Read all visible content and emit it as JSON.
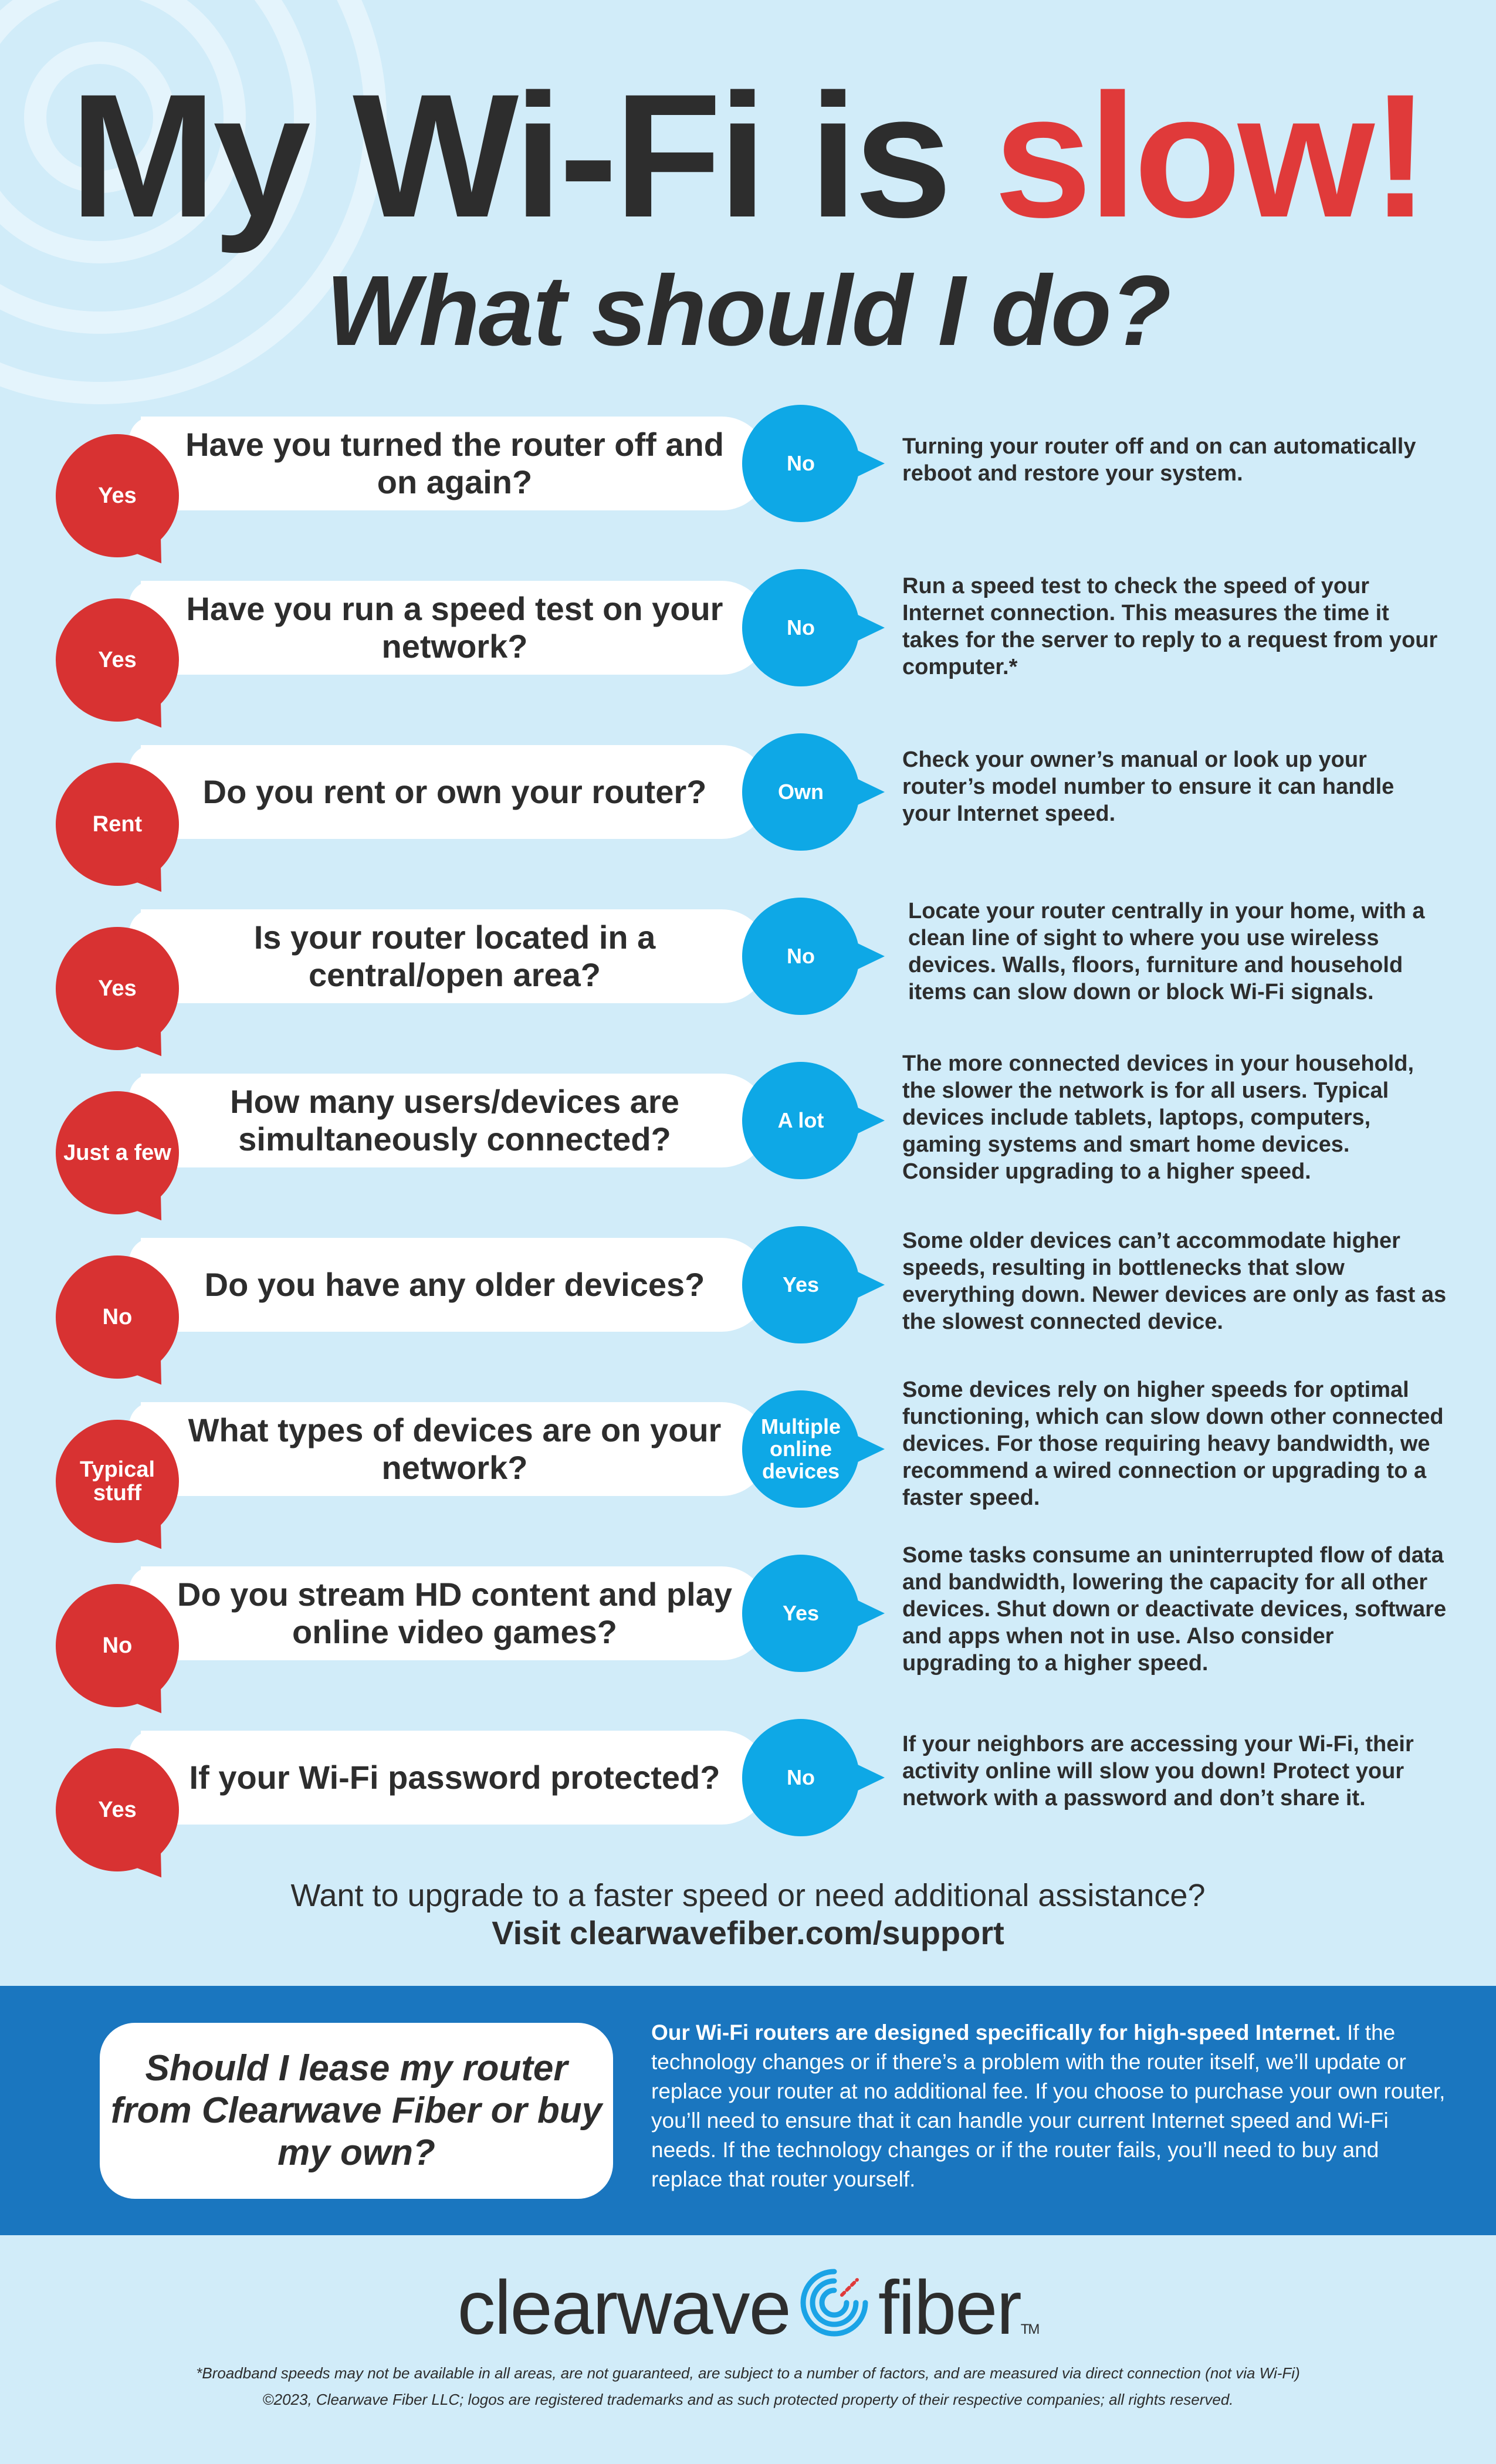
{
  "header": {
    "title_part1": "My Wi-Fi is ",
    "title_accent": "slow!",
    "subtitle": "What should I do?"
  },
  "colors": {
    "background": "#d1ecf9",
    "red": "#d83232",
    "blue": "#0ea8e6",
    "band": "#1a76bf",
    "text": "#2d2d2d"
  },
  "rows": [
    {
      "left_answer": "Yes",
      "question": "Have you turned the router off and on again?",
      "right_answer": "No",
      "explanation": "Turning your router off and on can automatically reboot and restore your system."
    },
    {
      "left_answer": "Yes",
      "question": "Have you run a speed test on your network?",
      "right_answer": "No",
      "explanation": "Run a speed test to check the speed of your Internet connection. This measures the time it takes for the server to reply to a request from your computer.*"
    },
    {
      "left_answer": "Rent",
      "question": "Do you rent or own your router?",
      "right_answer": "Own",
      "explanation": "Check your owner’s manual or look up your router’s model number to ensure it can handle your Internet speed."
    },
    {
      "left_answer": "Yes",
      "question": "Is your router located in a central/open area?",
      "right_answer": "No",
      "explanation": "Locate your router centrally in your home, with a clean line of sight to where you use wireless devices. Walls, floors, furniture and household items can slow down or block Wi-Fi signals."
    },
    {
      "left_answer": "Just a few",
      "question": "How many users/devices are simultaneously connected?",
      "right_answer": "A lot",
      "explanation": "The more connected devices in your household, the slower the network is for all users. Typical devices include tablets, laptops, computers, gaming systems and smart home devices. Consider upgrading to a higher speed."
    },
    {
      "left_answer": "No",
      "question": "Do you have any older devices?",
      "right_answer": "Yes",
      "explanation": "Some older devices can’t accommodate higher speeds, resulting in bottlenecks that slow everything down. Newer devices are only as fast as the slowest connected device."
    },
    {
      "left_answer": "Typical stuff",
      "question": "What types of devices are on your network?",
      "right_answer": "Multiple online devices",
      "explanation": "Some devices rely on higher speeds for optimal functioning, which can slow down other connected devices. For those requiring heavy bandwidth, we recommend a wired connection or upgrading to a faster speed."
    },
    {
      "left_answer": "No",
      "question": "Do you stream HD content and play online video games?",
      "right_answer": "Yes",
      "explanation": "Some tasks consume an uninterrupted flow of data and bandwidth, lowering the capacity for all other devices. Shut down or deactivate devices, software and apps when not in use. Also consider upgrading to a higher speed."
    },
    {
      "left_answer": "Yes",
      "question": "If your Wi-Fi password protected?",
      "right_answer": "No",
      "explanation": "If your neighbors are accessing your Wi-Fi, their activity online will slow you down! Protect your network with a password and don’t share it."
    }
  ],
  "cta": {
    "line1": "Want to upgrade to a faster speed or need additional assistance?",
    "line2": "Visit clearwavefiber.com/support"
  },
  "lease": {
    "question": "Should I lease my router from Clearwave Fiber or buy my own?",
    "lead": "Our Wi-Fi routers are designed specifically for high-speed Internet.",
    "body": "If the technology changes or if there’s a problem with the router itself, we’ll update or replace your router at no additional fee. If you choose to purchase your own router, you’ll need to ensure that it can handle your current Internet speed and Wi-Fi needs. If the technology changes or if the router fails, you’ll need to buy and replace that router yourself."
  },
  "logo": {
    "word1": "clearwave",
    "word2": "fiber",
    "tm": "TM",
    "icon": "swirl-logo-icon"
  },
  "footer": {
    "disclaimer": "*Broadband speeds may not be available in all areas, are not guaranteed, are subject to a number of factors, and are measured via direct connection (not via Wi-Fi)",
    "copyright": "©2023, Clearwave Fiber LLC; logos are registered trademarks and as such protected property of their respective companies; all rights reserved."
  }
}
